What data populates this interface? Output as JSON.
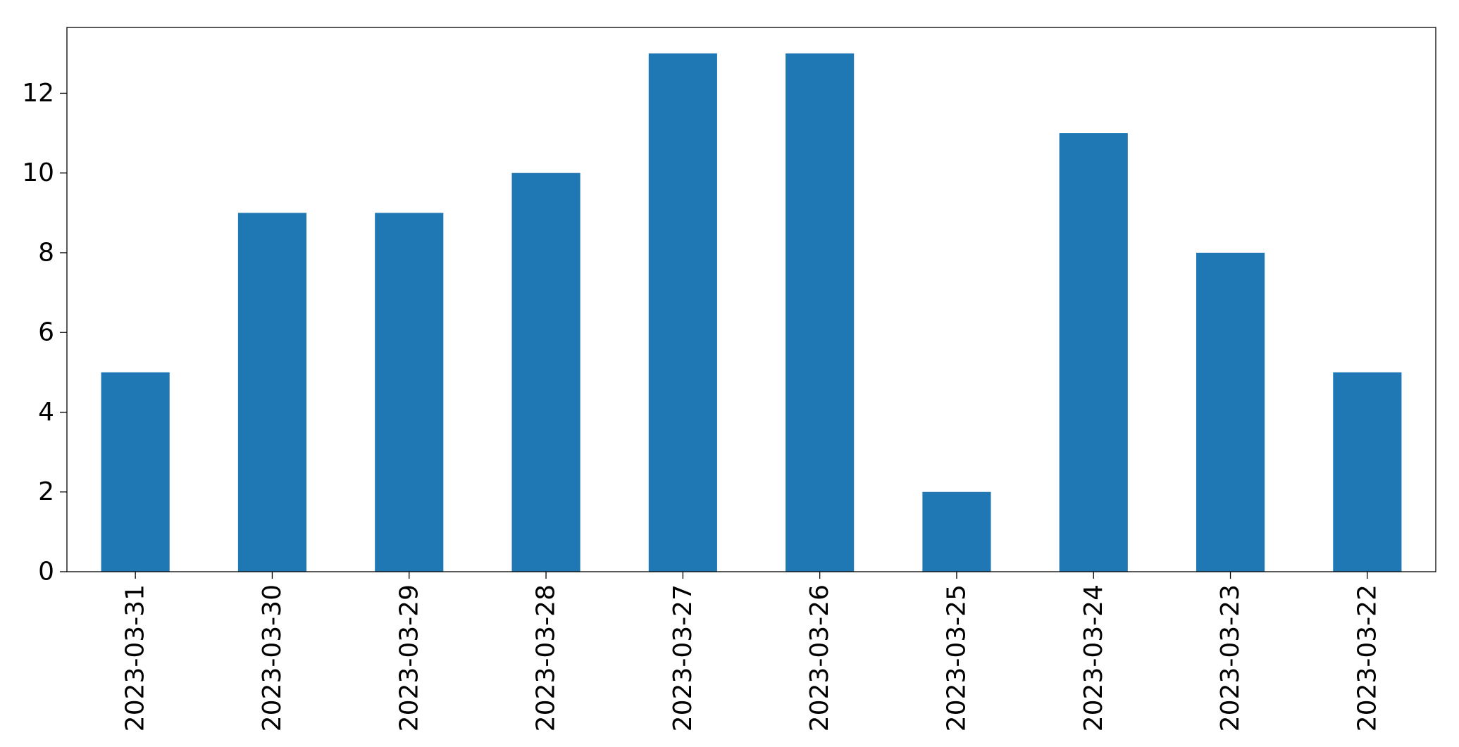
{
  "chart_data": {
    "type": "bar",
    "categories": [
      "2023-03-31",
      "2023-03-30",
      "2023-03-29",
      "2023-03-28",
      "2023-03-27",
      "2023-03-26",
      "2023-03-25",
      "2023-03-24",
      "2023-03-23",
      "2023-03-22"
    ],
    "values": [
      5,
      9,
      9,
      10,
      13,
      13,
      2,
      11,
      8,
      5
    ],
    "title": "",
    "xlabel": "",
    "ylabel": "",
    "ylim": [
      0,
      13.65
    ],
    "yticks": [
      0,
      2,
      4,
      6,
      8,
      10,
      12
    ],
    "grid": false,
    "legend": "none",
    "bar_color": "#1f77b4"
  }
}
